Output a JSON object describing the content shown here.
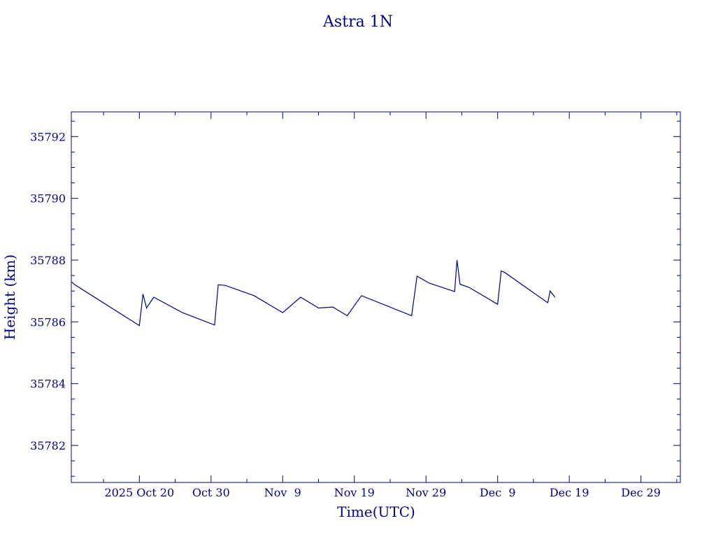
{
  "chart_data": {
    "type": "line",
    "title": "Astra 1N",
    "xlabel": "Time(UTC)",
    "ylabel": "Height (km)",
    "x_range": [
      "2025-10-10T12:00",
      "2026-01-03T12:00"
    ],
    "ylim": [
      35780.8,
      35792.8
    ],
    "y_ticks": [
      35782,
      35784,
      35786,
      35788,
      35790,
      35792
    ],
    "y_tick_labels": [
      "35782",
      "35784",
      "35786",
      "35788",
      "35790",
      "35792"
    ],
    "x_ticks": [
      {
        "date": "2025-10-20",
        "label": "2025 Oct 20"
      },
      {
        "date": "2025-10-30",
        "label": "Oct 30"
      },
      {
        "date": "2025-11-09",
        "label": "Nov  9"
      },
      {
        "date": "2025-11-19",
        "label": "Nov 19"
      },
      {
        "date": "2025-11-29",
        "label": "Nov 29"
      },
      {
        "date": "2025-12-09",
        "label": "Dec  9"
      },
      {
        "date": "2025-12-19",
        "label": "Dec 19"
      },
      {
        "date": "2025-12-29",
        "label": "Dec 29"
      }
    ],
    "grid": false,
    "series": [
      {
        "color": "#00008b",
        "points": [
          [
            "2025-10-10T12:00",
            35787.3
          ],
          [
            "2025-10-11T00:00",
            35787.2
          ],
          [
            "2025-10-20T00:00",
            35785.88
          ],
          [
            "2025-10-20T12:00",
            35786.9
          ],
          [
            "2025-10-21T00:00",
            35786.45
          ],
          [
            "2025-10-22T00:00",
            35786.8
          ],
          [
            "2025-10-26T00:00",
            35786.3
          ],
          [
            "2025-10-30T12:00",
            35785.9
          ],
          [
            "2025-10-31T00:00",
            35787.2
          ],
          [
            "2025-11-01T00:00",
            35787.18
          ],
          [
            "2025-11-05T00:00",
            35786.85
          ],
          [
            "2025-11-09T00:00",
            35786.3
          ],
          [
            "2025-11-11T12:00",
            35786.8
          ],
          [
            "2025-11-14T00:00",
            35786.45
          ],
          [
            "2025-11-16T00:00",
            35786.48
          ],
          [
            "2025-11-18T00:00",
            35786.2
          ],
          [
            "2025-11-20T00:00",
            35786.85
          ],
          [
            "2025-11-27T00:00",
            35786.2
          ],
          [
            "2025-11-27T18:00",
            35787.48
          ],
          [
            "2025-11-29T12:00",
            35787.25
          ],
          [
            "2025-12-03T00:00",
            35786.98
          ],
          [
            "2025-12-03T08:00",
            35788.0
          ],
          [
            "2025-12-03T18:00",
            35787.22
          ],
          [
            "2025-12-05T00:00",
            35787.12
          ],
          [
            "2025-12-09T00:00",
            35786.57
          ],
          [
            "2025-12-09T12:00",
            35787.65
          ],
          [
            "2025-12-10T00:00",
            35787.6
          ],
          [
            "2025-12-16T00:00",
            35786.62
          ],
          [
            "2025-12-16T08:00",
            35787.0
          ],
          [
            "2025-12-17T00:00",
            35786.8
          ]
        ]
      }
    ]
  }
}
